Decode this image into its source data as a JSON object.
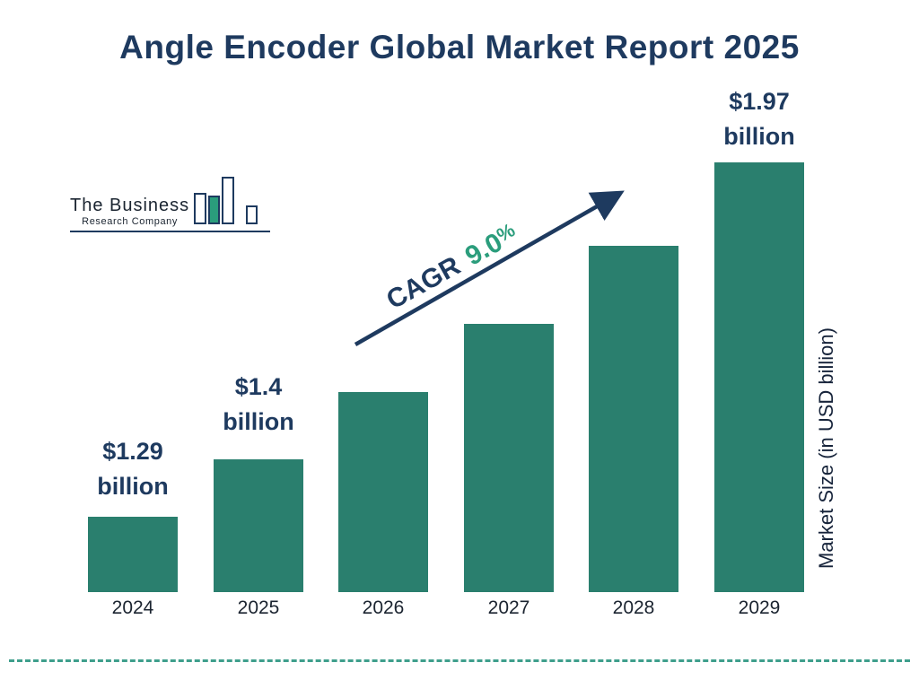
{
  "title": "Angle Encoder Global Market Report 2025",
  "logo": {
    "line1": "The Business",
    "line2": "Research Company"
  },
  "cagr": {
    "prefix": "CAGR",
    "value": "9.0",
    "percent": "%"
  },
  "y_axis_label": "Market Size (in USD billion)",
  "colors": {
    "navy": "#1e3a5f",
    "bar": "#2a7f6e",
    "teal_text": "#2b9d7c",
    "dashed_line": "#3f9f8c"
  },
  "value_labels": [
    {
      "amount": "$1.29",
      "unit": "billion"
    },
    {
      "amount": "$1.4",
      "unit": "billion"
    },
    {
      "amount": "$1.97",
      "unit": "billion"
    }
  ],
  "chart_data": {
    "type": "bar",
    "categories": [
      "2024",
      "2025",
      "2026",
      "2027",
      "2028",
      "2029"
    ],
    "values": [
      1.29,
      1.4,
      1.53,
      1.66,
      1.81,
      1.97
    ],
    "labeled_points": {
      "2024": "$1.29 billion",
      "2025": "$1.4 billion",
      "2029": "$1.97 billion"
    },
    "title": "Angle Encoder Global Market Report 2025",
    "xlabel": "",
    "ylabel": "Market Size (in USD billion)",
    "annotation": "CAGR 9.0%",
    "legend": "none",
    "grid": false,
    "bar_color": "#2a7f6e"
  }
}
